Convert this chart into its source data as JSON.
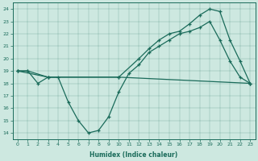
{
  "xlabel": "Humidex (Indice chaleur)",
  "xlim": [
    -0.5,
    23.5
  ],
  "ylim": [
    13.5,
    24.5
  ],
  "yticks": [
    14,
    15,
    16,
    17,
    18,
    19,
    20,
    21,
    22,
    23,
    24
  ],
  "xticks": [
    0,
    1,
    2,
    3,
    4,
    5,
    6,
    7,
    8,
    9,
    10,
    11,
    12,
    13,
    14,
    15,
    16,
    17,
    18,
    19,
    20,
    21,
    22,
    23
  ],
  "bg_color": "#cde8e0",
  "line_color": "#1a6b5a",
  "line1_x": [
    0,
    1,
    3,
    10,
    23
  ],
  "line1_y": [
    19,
    19,
    18.5,
    18.5,
    18
  ],
  "line2_x": [
    0,
    1,
    2,
    3,
    4,
    5,
    6,
    7,
    8,
    9,
    10,
    11,
    12,
    13,
    14,
    15,
    16,
    17,
    18,
    19,
    20,
    21,
    22,
    23
  ],
  "line2_y": [
    19,
    19,
    18,
    18.5,
    18.5,
    16.5,
    15,
    14,
    14.2,
    15.3,
    17.3,
    18.8,
    19.5,
    20.5,
    21,
    21.5,
    22,
    22.2,
    22.5,
    23,
    21.5,
    19.8,
    18.5,
    18
  ],
  "line3_x": [
    0,
    3,
    10,
    12,
    13,
    14,
    15,
    16,
    17,
    18,
    19,
    20,
    21,
    22,
    23
  ],
  "line3_y": [
    19,
    18.5,
    18.5,
    20,
    20.8,
    21.5,
    22,
    22.2,
    22.8,
    23.5,
    24,
    23.8,
    21.5,
    19.8,
    18
  ]
}
